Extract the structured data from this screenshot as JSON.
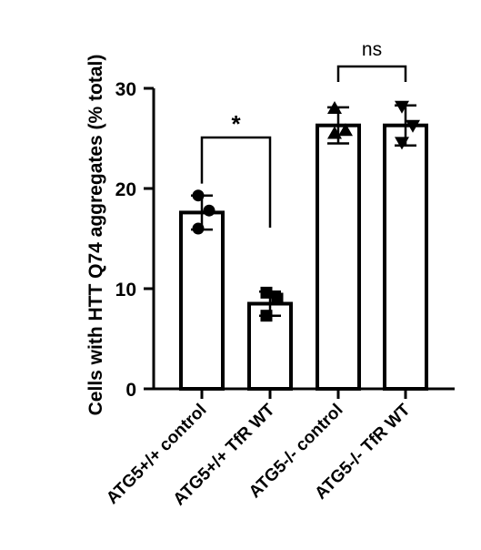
{
  "chart_data": {
    "type": "bar",
    "title": "",
    "xlabel": "",
    "ylabel": "Cells with HTT Q74 aggregates (% total)",
    "ylim": [
      0,
      30
    ],
    "yticks": [
      0,
      10,
      20,
      30
    ],
    "grid": false,
    "categories": [
      "ATG5+/+ control",
      "ATG5+/+ TfR WT",
      "ATG5-/- control",
      "ATG5-/- TfR WT"
    ],
    "values": [
      17.6,
      8.5,
      26.3,
      26.3
    ],
    "errors": [
      1.7,
      1.2,
      1.8,
      2.0
    ],
    "points": [
      {
        "marker": "circle",
        "values": [
          19.3,
          17.8,
          16.0
        ]
      },
      {
        "marker": "square",
        "values": [
          9.6,
          9.0,
          7.3
        ]
      },
      {
        "marker": "triangle-up",
        "values": [
          28.0,
          25.8,
          25.5
        ]
      },
      {
        "marker": "triangle-down",
        "values": [
          28.2,
          26.3,
          24.6
        ]
      }
    ],
    "significance": [
      {
        "from": 0,
        "to": 1,
        "label": "*"
      },
      {
        "from": 2,
        "to": 3,
        "label": "ns"
      }
    ]
  }
}
